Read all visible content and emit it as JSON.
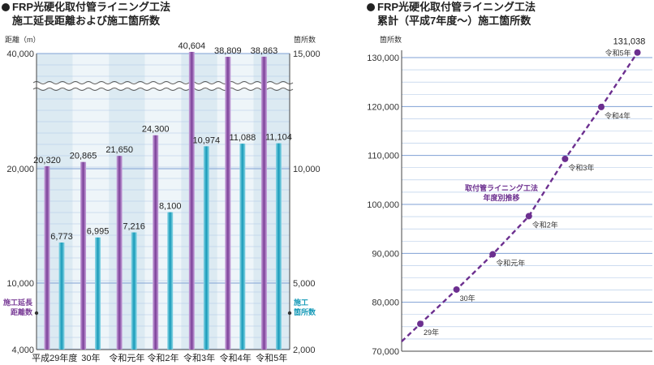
{
  "colors": {
    "plot_bg": "#dceaf2",
    "grid": "#7fa0d4",
    "purple": "#7b3f98",
    "purple_light": "#c9a6dd",
    "teal": "#169ab8",
    "teal_light": "#8fd8e8",
    "line_purple": "#6c2f8f"
  },
  "chart_data": [
    {
      "type": "bar",
      "title_line1": "FRP光硬化取付管ライニング工法",
      "title_line2": "施工延長距離および施工箇所数",
      "categories": [
        "平成29年度",
        "30年",
        "令和元年",
        "令和2年",
        "令和3年",
        "令和4年",
        "令和5年"
      ],
      "series": [
        {
          "name": "施工延長距離数",
          "axis": "left",
          "values": [
            20320,
            20865,
            21650,
            24300,
            40604,
            38809,
            38863
          ]
        },
        {
          "name": "施工箇所数",
          "axis": "right",
          "values": [
            6773,
            6995,
            7216,
            8100,
            10974,
            11088,
            11104
          ]
        }
      ],
      "y_left": {
        "label": "距離（m）",
        "ticks": [
          4000,
          10000,
          20000,
          40000
        ],
        "tick_labels": [
          "4,000",
          "10,000",
          "20,000",
          "40,000"
        ]
      },
      "y_right": {
        "label": "箇所数",
        "ticks": [
          2000,
          5000,
          10000,
          15000
        ],
        "tick_labels": [
          "2,000",
          "5,000",
          "10,000",
          "15,000"
        ]
      },
      "axis_break": true,
      "grid": true,
      "legend_left_line1": "施工延長",
      "legend_left_line2": "距離数",
      "legend_right_line1": "施工",
      "legend_right_line2": "箇所数"
    },
    {
      "type": "line",
      "title_line1": "FRP光硬化取付管ライニング工法",
      "title_line2": "累計（平成7年度〜）施工箇所数",
      "ylabel": "箇所数",
      "ylim": [
        70000,
        131038
      ],
      "y_ticks": [
        70000,
        80000,
        90000,
        100000,
        110000,
        120000,
        130000
      ],
      "y_tick_labels": [
        "70,000",
        "80,000",
        "90,000",
        "100,000",
        "110,000",
        "120,000",
        "130,000"
      ],
      "points": [
        {
          "label": "29年",
          "value": 75600
        },
        {
          "label": "30年",
          "value": 82600
        },
        {
          "label": "令和元年",
          "value": 89800
        },
        {
          "label": "令和2年",
          "value": 97600
        },
        {
          "label": "令和3年",
          "value": 109300
        },
        {
          "label": "令和4年",
          "value": 119900
        },
        {
          "label": "令和5年",
          "value": 131038
        }
      ],
      "end_value_label": "131,038",
      "annotation_line1": "取付管ライニング工法",
      "annotation_line2": "年度別推移",
      "grid": true
    }
  ]
}
